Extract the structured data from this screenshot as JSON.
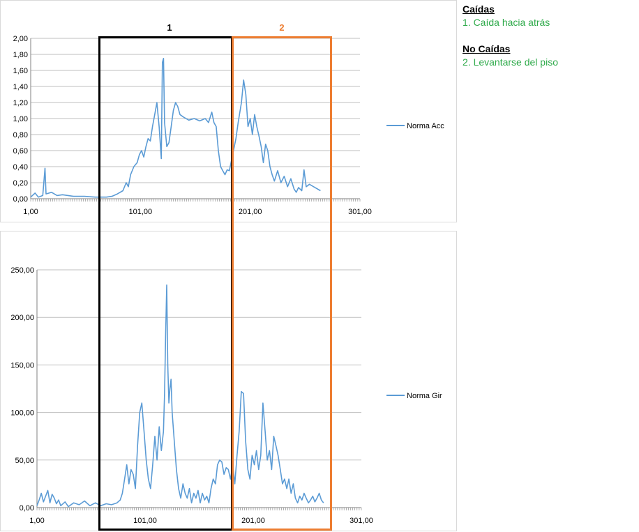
{
  "chart_data": [
    {
      "type": "line",
      "ylim": [
        0,
        2
      ],
      "yticks": [
        "0,00",
        "0,20",
        "0,40",
        "0,60",
        "0,80",
        "1,00",
        "1,20",
        "1,40",
        "1,60",
        "1,80",
        "2,00"
      ],
      "xticks": [
        "1,00",
        "101,00",
        "201,00",
        "301,00"
      ],
      "xlim": [
        1,
        301
      ],
      "series": [
        {
          "name": "Norma Acc",
          "color": "#5b9bd5",
          "points": [
            [
              1,
              0.02
            ],
            [
              5,
              0.07
            ],
            [
              8,
              0.02
            ],
            [
              12,
              0.04
            ],
            [
              14,
              0.38
            ],
            [
              15,
              0.06
            ],
            [
              20,
              0.08
            ],
            [
              25,
              0.04
            ],
            [
              30,
              0.05
            ],
            [
              40,
              0.03
            ],
            [
              50,
              0.03
            ],
            [
              60,
              0.02
            ],
            [
              70,
              0.02
            ],
            [
              75,
              0.03
            ],
            [
              80,
              0.06
            ],
            [
              85,
              0.1
            ],
            [
              88,
              0.2
            ],
            [
              90,
              0.15
            ],
            [
              92,
              0.3
            ],
            [
              95,
              0.4
            ],
            [
              98,
              0.45
            ],
            [
              100,
              0.55
            ],
            [
              102,
              0.6
            ],
            [
              104,
              0.52
            ],
            [
              106,
              0.65
            ],
            [
              108,
              0.75
            ],
            [
              110,
              0.72
            ],
            [
              112,
              0.9
            ],
            [
              114,
              1.05
            ],
            [
              116,
              1.2
            ],
            [
              118,
              0.9
            ],
            [
              120,
              0.5
            ],
            [
              121,
              1.7
            ],
            [
              122,
              1.75
            ],
            [
              123,
              0.95
            ],
            [
              125,
              0.65
            ],
            [
              127,
              0.7
            ],
            [
              129,
              0.9
            ],
            [
              131,
              1.1
            ],
            [
              133,
              1.2
            ],
            [
              135,
              1.15
            ],
            [
              137,
              1.05
            ],
            [
              140,
              1.02
            ],
            [
              145,
              0.98
            ],
            [
              150,
              1.0
            ],
            [
              155,
              0.97
            ],
            [
              160,
              1.0
            ],
            [
              163,
              0.95
            ],
            [
              166,
              1.08
            ],
            [
              168,
              0.95
            ],
            [
              170,
              0.9
            ],
            [
              172,
              0.6
            ],
            [
              174,
              0.4
            ],
            [
              176,
              0.35
            ],
            [
              178,
              0.3
            ],
            [
              180,
              0.36
            ],
            [
              182,
              0.35
            ],
            [
              185,
              0.55
            ],
            [
              188,
              0.75
            ],
            [
              190,
              0.95
            ],
            [
              193,
              1.2
            ],
            [
              195,
              1.48
            ],
            [
              197,
              1.3
            ],
            [
              199,
              0.9
            ],
            [
              201,
              1.0
            ],
            [
              203,
              0.8
            ],
            [
              205,
              1.05
            ],
            [
              207,
              0.9
            ],
            [
              209,
              0.78
            ],
            [
              211,
              0.65
            ],
            [
              213,
              0.45
            ],
            [
              215,
              0.68
            ],
            [
              217,
              0.6
            ],
            [
              219,
              0.4
            ],
            [
              221,
              0.3
            ],
            [
              223,
              0.22
            ],
            [
              226,
              0.35
            ],
            [
              229,
              0.2
            ],
            [
              232,
              0.28
            ],
            [
              235,
              0.15
            ],
            [
              238,
              0.25
            ],
            [
              241,
              0.12
            ],
            [
              243,
              0.08
            ],
            [
              245,
              0.14
            ],
            [
              248,
              0.1
            ],
            [
              250,
              0.36
            ],
            [
              252,
              0.15
            ],
            [
              255,
              0.18
            ],
            [
              260,
              0.14
            ],
            [
              265,
              0.1
            ]
          ]
        }
      ]
    },
    {
      "type": "line",
      "ylim": [
        0,
        250
      ],
      "yticks": [
        "0,00",
        "50,00",
        "100,00",
        "150,00",
        "200,00",
        "250,00"
      ],
      "xticks": [
        "1,00",
        "101,00",
        "201,00",
        "301,00"
      ],
      "xlim": [
        1,
        301
      ],
      "series": [
        {
          "name": "Norma Gir",
          "color": "#5b9bd5",
          "points": [
            [
              1,
              2
            ],
            [
              3,
              8
            ],
            [
              5,
              15
            ],
            [
              7,
              6
            ],
            [
              9,
              12
            ],
            [
              11,
              18
            ],
            [
              13,
              5
            ],
            [
              15,
              14
            ],
            [
              17,
              10
            ],
            [
              19,
              4
            ],
            [
              21,
              8
            ],
            [
              23,
              2
            ],
            [
              27,
              6
            ],
            [
              30,
              1
            ],
            [
              35,
              5
            ],
            [
              40,
              3
            ],
            [
              45,
              7
            ],
            [
              50,
              2
            ],
            [
              55,
              5
            ],
            [
              60,
              2
            ],
            [
              65,
              4
            ],
            [
              70,
              3
            ],
            [
              75,
              5
            ],
            [
              78,
              8
            ],
            [
              80,
              15
            ],
            [
              82,
              30
            ],
            [
              84,
              45
            ],
            [
              86,
              25
            ],
            [
              88,
              40
            ],
            [
              90,
              35
            ],
            [
              92,
              20
            ],
            [
              94,
              65
            ],
            [
              96,
              100
            ],
            [
              98,
              110
            ],
            [
              100,
              80
            ],
            [
              102,
              50
            ],
            [
              104,
              30
            ],
            [
              106,
              20
            ],
            [
              108,
              45
            ],
            [
              110,
              75
            ],
            [
              112,
              50
            ],
            [
              114,
              85
            ],
            [
              116,
              60
            ],
            [
              118,
              80
            ],
            [
              119,
              120
            ],
            [
              120,
              180
            ],
            [
              121,
              234
            ],
            [
              122,
              150
            ],
            [
              123,
              110
            ],
            [
              124,
              125
            ],
            [
              125,
              135
            ],
            [
              126,
              100
            ],
            [
              128,
              70
            ],
            [
              130,
              40
            ],
            [
              132,
              20
            ],
            [
              134,
              10
            ],
            [
              136,
              25
            ],
            [
              138,
              15
            ],
            [
              140,
              10
            ],
            [
              142,
              20
            ],
            [
              144,
              5
            ],
            [
              146,
              15
            ],
            [
              148,
              10
            ],
            [
              150,
              18
            ],
            [
              152,
              5
            ],
            [
              154,
              15
            ],
            [
              156,
              8
            ],
            [
              158,
              12
            ],
            [
              160,
              5
            ],
            [
              162,
              20
            ],
            [
              164,
              30
            ],
            [
              166,
              25
            ],
            [
              168,
              45
            ],
            [
              170,
              50
            ],
            [
              172,
              48
            ],
            [
              174,
              35
            ],
            [
              176,
              42
            ],
            [
              178,
              40
            ],
            [
              180,
              30
            ],
            [
              182,
              45
            ],
            [
              184,
              25
            ],
            [
              186,
              55
            ],
            [
              188,
              80
            ],
            [
              190,
              122
            ],
            [
              192,
              120
            ],
            [
              194,
              70
            ],
            [
              196,
              40
            ],
            [
              198,
              30
            ],
            [
              200,
              55
            ],
            [
              202,
              45
            ],
            [
              204,
              60
            ],
            [
              206,
              40
            ],
            [
              208,
              55
            ],
            [
              210,
              110
            ],
            [
              212,
              80
            ],
            [
              214,
              50
            ],
            [
              216,
              60
            ],
            [
              218,
              40
            ],
            [
              220,
              75
            ],
            [
              222,
              65
            ],
            [
              224,
              55
            ],
            [
              226,
              40
            ],
            [
              228,
              25
            ],
            [
              230,
              30
            ],
            [
              232,
              20
            ],
            [
              234,
              30
            ],
            [
              236,
              15
            ],
            [
              238,
              25
            ],
            [
              240,
              10
            ],
            [
              242,
              5
            ],
            [
              244,
              12
            ],
            [
              246,
              8
            ],
            [
              248,
              15
            ],
            [
              250,
              10
            ],
            [
              252,
              5
            ],
            [
              254,
              8
            ],
            [
              256,
              12
            ],
            [
              258,
              6
            ],
            [
              260,
              10
            ],
            [
              262,
              15
            ],
            [
              264,
              8
            ],
            [
              266,
              5
            ]
          ]
        }
      ]
    }
  ],
  "boxes": [
    {
      "label": "1",
      "color": "#000000"
    },
    {
      "label": "2",
      "color": "#ed7d31"
    }
  ],
  "sidebar": {
    "falls_header": "Caídas",
    "falls_item": "1. Caída hacia atrás",
    "nofalls_header": "No Caídas",
    "nofalls_item": "2. Levantarse del piso"
  }
}
